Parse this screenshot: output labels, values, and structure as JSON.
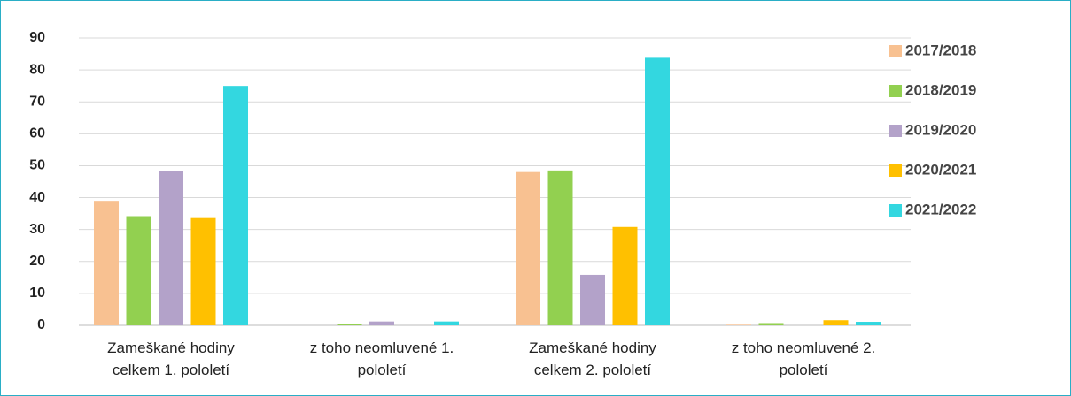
{
  "chart_data": {
    "type": "bar",
    "categories": [
      "Zameškané hodiny celkem  1. pololetí",
      "z toho neomluvené 1. pololetí",
      "Zameškané hodiny celkem 2. pololetí",
      "z toho neomluvené 2. pololetí"
    ],
    "series": [
      {
        "name": "2017/2018",
        "color": "#f8c191",
        "values": [
          39,
          0,
          48,
          0.2
        ]
      },
      {
        "name": "2018/2019",
        "color": "#92d050",
        "values": [
          34.2,
          0.4,
          48.5,
          0.7
        ]
      },
      {
        "name": "2019/2020",
        "color": "#b3a2c9",
        "values": [
          48.2,
          1.2,
          15.8,
          0
        ]
      },
      {
        "name": "2020/2021",
        "color": "#ffc000",
        "values": [
          33.6,
          0,
          30.8,
          1.6
        ]
      },
      {
        "name": "2021/2022",
        "color": "#33d7e0",
        "values": [
          75,
          1.2,
          83.8,
          1.1
        ]
      }
    ],
    "ylim": [
      0,
      90
    ],
    "yticks": [
      0,
      10,
      20,
      30,
      40,
      50,
      60,
      70,
      80,
      90
    ],
    "grid": true,
    "legend": "right"
  }
}
